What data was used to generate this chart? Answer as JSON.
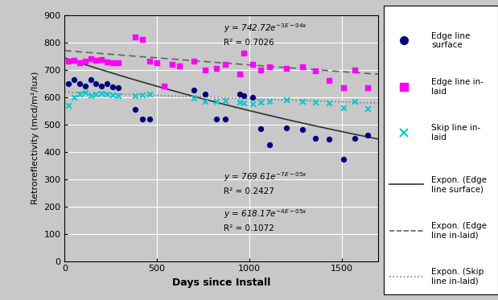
{
  "xlabel": "Days since Install",
  "ylabel": "Retroreflectivity (mcd/m²/lux)",
  "xlim": [
    0,
    1700
  ],
  "ylim": [
    0,
    900
  ],
  "xticks": [
    0,
    500,
    1000,
    1500
  ],
  "yticks": [
    0,
    100,
    200,
    300,
    400,
    500,
    600,
    700,
    800,
    900
  ],
  "edge_surface_x": [
    20,
    50,
    80,
    110,
    140,
    170,
    200,
    230,
    260,
    290,
    380,
    420,
    460,
    700,
    760,
    820,
    870,
    950,
    970,
    1020,
    1060,
    1110,
    1200,
    1290,
    1360,
    1430,
    1510,
    1570,
    1640
  ],
  "edge_surface_y": [
    648,
    665,
    650,
    640,
    665,
    648,
    640,
    648,
    637,
    635,
    555,
    520,
    520,
    625,
    610,
    520,
    518,
    610,
    605,
    600,
    485,
    425,
    487,
    480,
    450,
    447,
    373,
    450,
    460
  ],
  "edge_inlaid_x": [
    20,
    50,
    80,
    110,
    140,
    170,
    200,
    230,
    260,
    290,
    380,
    420,
    460,
    500,
    540,
    580,
    620,
    700,
    760,
    820,
    870,
    950,
    970,
    1020,
    1060,
    1110,
    1200,
    1290,
    1360,
    1430,
    1510,
    1570,
    1640
  ],
  "edge_inlaid_y": [
    730,
    735,
    725,
    730,
    740,
    733,
    738,
    728,
    724,
    726,
    820,
    810,
    730,
    724,
    640,
    720,
    715,
    730,
    700,
    705,
    720,
    685,
    760,
    720,
    700,
    710,
    705,
    710,
    695,
    660,
    635,
    700,
    635
  ],
  "skip_inlaid_x": [
    20,
    50,
    80,
    110,
    140,
    170,
    200,
    230,
    260,
    290,
    380,
    420,
    460,
    700,
    760,
    820,
    870,
    950,
    970,
    1020,
    1060,
    1110,
    1200,
    1290,
    1360,
    1430,
    1510,
    1570,
    1640
  ],
  "skip_inlaid_y": [
    570,
    600,
    610,
    617,
    606,
    610,
    614,
    612,
    608,
    605,
    605,
    607,
    610,
    595,
    585,
    585,
    588,
    582,
    578,
    575,
    580,
    585,
    590,
    583,
    582,
    577,
    560,
    583,
    558
  ],
  "exp_surface_a": 742.72,
  "exp_surface_b": -0.0003,
  "exp_inlaid_a": 769.61,
  "exp_inlaid_b": -7e-05,
  "exp_skip_a": 618.17,
  "exp_skip_b": -4e-05,
  "color_surface": "#000080",
  "color_inlaid": "#FF00FF",
  "color_skip": "#00CCCC",
  "bg_color": "#C8C8C8",
  "legend_bg": "#FFFFFF",
  "curve_surface_color": "#303030",
  "curve_inlaid_color": "#606060",
  "curve_skip_color": "#808080"
}
